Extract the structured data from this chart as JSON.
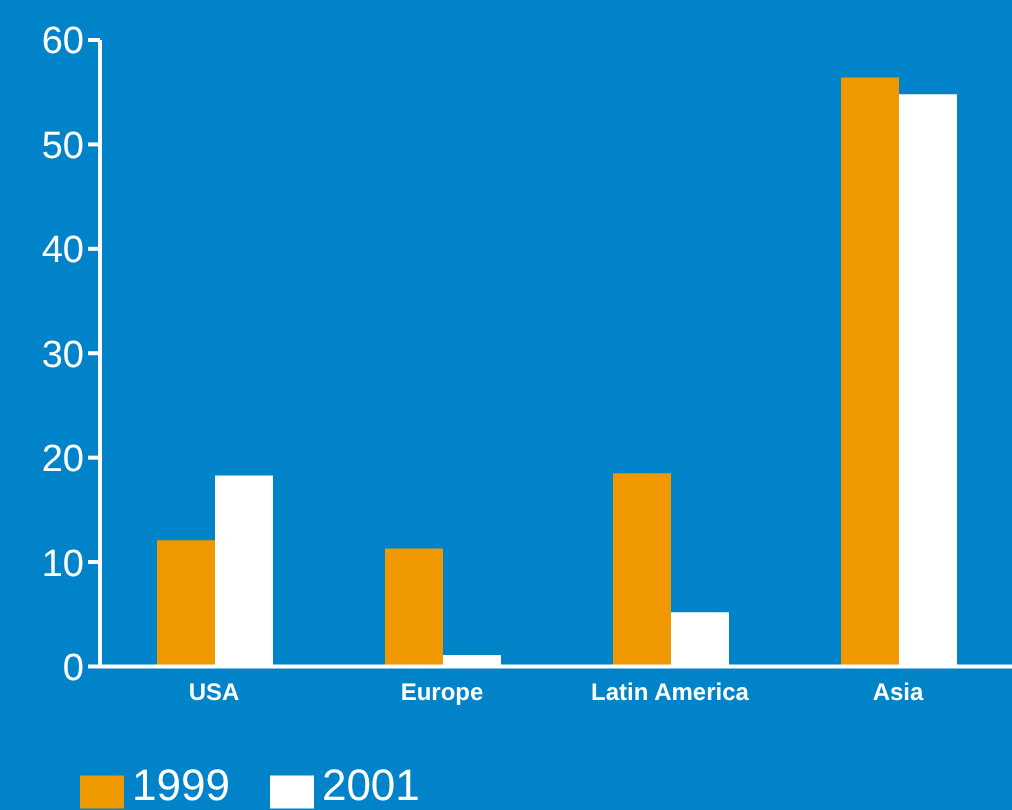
{
  "chart_data": {
    "type": "bar",
    "categories": [
      "USA",
      "Europe",
      "Latin America",
      "Asia"
    ],
    "series": [
      {
        "name": "1999",
        "color": "#f09800",
        "values": [
          12.1,
          11.3,
          18.5,
          56.4
        ]
      },
      {
        "name": "2001",
        "color": "#ffffff",
        "values": [
          18.3,
          1.1,
          5.2,
          54.8
        ]
      }
    ],
    "ylim": [
      0,
      60
    ],
    "yticks": [
      0,
      10,
      20,
      30,
      40,
      50,
      60
    ],
    "grid": false,
    "legend": "bottom left"
  }
}
